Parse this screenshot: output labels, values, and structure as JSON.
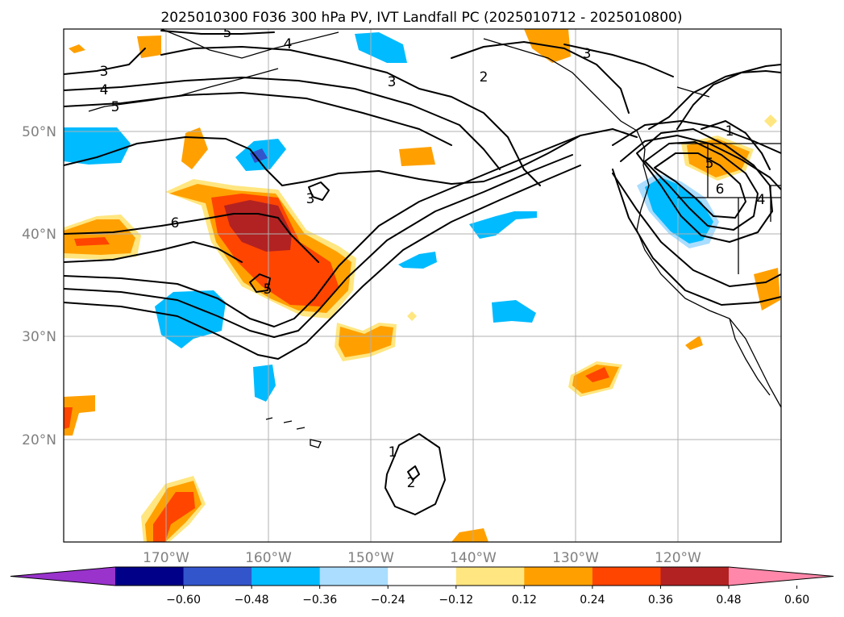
{
  "title": "2025010300 F036 300 hPa PV, IVT Landfall PC (2025010712 - 2025010800)",
  "lon_labels": [
    "170°W",
    "160°W",
    "150°W",
    "140°W",
    "130°W",
    "120°W"
  ],
  "lat_labels": [
    "50°N",
    "40°N",
    "30°N",
    "20°N"
  ],
  "colorbar": {
    "ticks": [
      "−0.60",
      "−0.48",
      "−0.36",
      "−0.24",
      "−0.12",
      "0.12",
      "0.24",
      "0.36",
      "0.48",
      "0.60"
    ],
    "colors": [
      "#9933cc",
      "#000088",
      "#3355cc",
      "#00bbff",
      "#aaddff",
      "#ffffff",
      "#ffe680",
      "#ffa000",
      "#ff4500",
      "#b22222",
      "#ff88aa"
    ]
  },
  "contour_labels": [
    "5",
    "3",
    "4",
    "5",
    "4",
    "3",
    "2",
    "3",
    "6",
    "3",
    "5",
    "1",
    "6",
    "4",
    "1",
    "5",
    "2"
  ]
}
